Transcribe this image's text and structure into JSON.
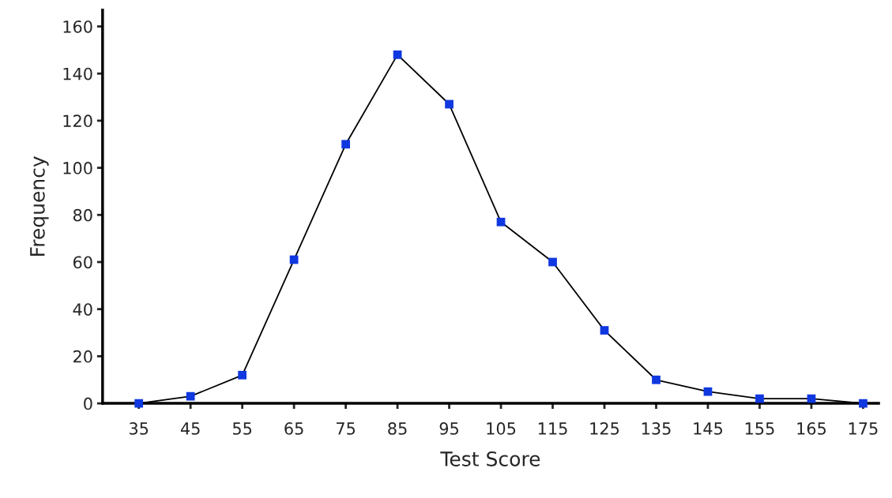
{
  "chart_data": {
    "type": "line",
    "xlabel": "Test Score",
    "ylabel": "Frequency",
    "x": [
      35,
      45,
      55,
      65,
      75,
      85,
      95,
      105,
      115,
      125,
      135,
      145,
      155,
      165,
      175
    ],
    "series": [
      {
        "color": "#1038e0",
        "values": [
          0,
          3,
          12,
          61,
          110,
          148,
          127,
          77,
          60,
          31,
          10,
          5,
          2,
          2,
          0
        ]
      }
    ],
    "xlim": [
      28,
      178
    ],
    "xticks": [
      35,
      45,
      55,
      65,
      75,
      85,
      95,
      105,
      115,
      125,
      135,
      145,
      155,
      165,
      175
    ],
    "ylim": [
      0,
      167
    ],
    "yticks": [
      0,
      20,
      40,
      60,
      80,
      100,
      120,
      140,
      160
    ],
    "grid": false,
    "legend": false,
    "marker": "square",
    "line_style": "solid"
  }
}
